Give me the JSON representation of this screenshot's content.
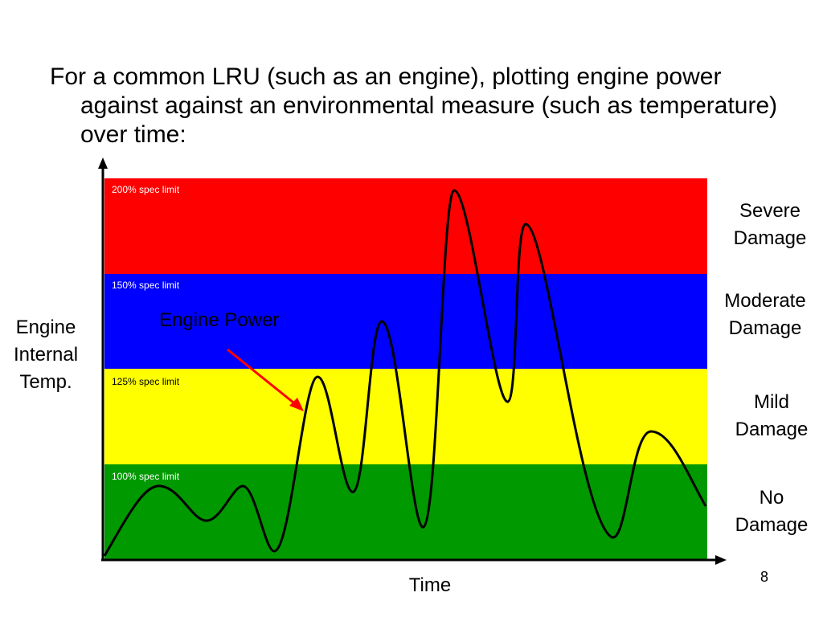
{
  "slide": {
    "bullet": "For a common LRU (such as an engine), plotting engine power against against an environmental measure (such as temperature) over time:",
    "page_number": "8"
  },
  "diagram": {
    "y_axis_label": [
      "Engine",
      "Internal",
      "Temp."
    ],
    "x_axis_label": "Time",
    "curve_label": "Engine Power",
    "colors": {
      "red_zone": "#ff0000",
      "blue_zone": "#0000ff",
      "yellow_zone": "#ffff00",
      "green_zone": "#009900",
      "arrow": "#ff0000",
      "curve": "#000000"
    },
    "bands": [
      {
        "spec_label": "200% spec limit",
        "damage": [
          "Severe",
          "Damage"
        ],
        "color": "#ff0000"
      },
      {
        "spec_label": "150% spec limit",
        "damage": [
          "Moderate",
          "Damage"
        ],
        "color": "#0000ff"
      },
      {
        "spec_label": "125% spec limit",
        "damage": [
          "Mild",
          "Damage"
        ],
        "color": "#ffff00"
      },
      {
        "spec_label": "100% spec limit",
        "damage": [
          "No",
          "Damage"
        ],
        "color": "#009900"
      }
    ]
  }
}
